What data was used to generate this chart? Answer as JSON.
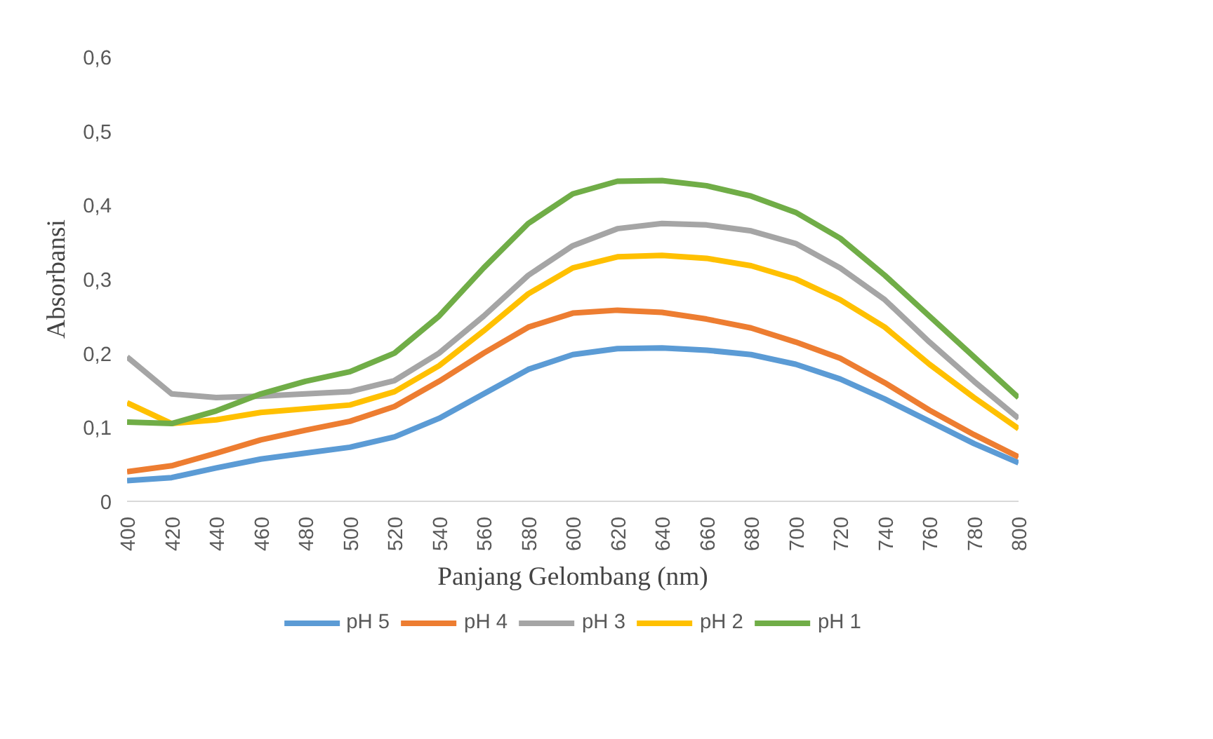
{
  "chart_data": {
    "type": "line",
    "xlabel": "Panjang Gelombang (nm)",
    "ylabel": "Absorbansi",
    "x": [
      400,
      420,
      440,
      460,
      480,
      500,
      520,
      540,
      560,
      580,
      600,
      620,
      640,
      660,
      680,
      700,
      720,
      740,
      760,
      780,
      800
    ],
    "xlim": [
      400,
      800
    ],
    "xticks": [
      400,
      420,
      440,
      460,
      480,
      500,
      520,
      540,
      560,
      580,
      600,
      620,
      640,
      660,
      680,
      700,
      720,
      740,
      760,
      780,
      800
    ],
    "ylim": [
      0,
      0.6
    ],
    "yticks": [
      0,
      {
        "value": 0.1,
        "label": "0,1"
      },
      {
        "value": 0.2,
        "label": "0,2"
      },
      {
        "value": 0.3,
        "label": "0,3"
      },
      {
        "value": 0.4,
        "label": "0,4"
      },
      {
        "value": 0.5,
        "label": "0,5"
      },
      {
        "value": 0.6,
        "label": "0,6"
      }
    ],
    "grid": false,
    "legend": "bottom",
    "marker": "none",
    "line_style": "solid",
    "series": [
      {
        "name": "pH 5",
        "color": "#5b9bd5",
        "values": [
          0.028,
          0.032,
          0.045,
          0.057,
          0.065,
          0.073,
          0.087,
          0.112,
          0.145,
          0.178,
          0.198,
          0.206,
          0.207,
          0.204,
          0.198,
          0.185,
          0.165,
          0.138,
          0.108,
          0.078,
          0.052
        ]
      },
      {
        "name": "pH 4",
        "color": "#ed7d31",
        "values": [
          0.04,
          0.048,
          0.065,
          0.083,
          0.096,
          0.108,
          0.128,
          0.162,
          0.2,
          0.235,
          0.254,
          0.258,
          0.255,
          0.246,
          0.234,
          0.215,
          0.193,
          0.16,
          0.123,
          0.09,
          0.06
        ]
      },
      {
        "name": "pH 3",
        "color": "#a5a5a5",
        "values": [
          0.195,
          0.145,
          0.14,
          0.142,
          0.145,
          0.148,
          0.163,
          0.2,
          0.25,
          0.305,
          0.345,
          0.368,
          0.375,
          0.373,
          0.365,
          0.348,
          0.315,
          0.272,
          0.215,
          0.162,
          0.112
        ]
      },
      {
        "name": "pH 2",
        "color": "#ffc000",
        "values": [
          0.133,
          0.105,
          0.11,
          0.12,
          0.125,
          0.13,
          0.148,
          0.183,
          0.23,
          0.28,
          0.315,
          0.33,
          0.332,
          0.328,
          0.318,
          0.3,
          0.272,
          0.235,
          0.185,
          0.14,
          0.098
        ]
      },
      {
        "name": "pH 1",
        "color": "#70ad47",
        "values": [
          0.107,
          0.105,
          0.122,
          0.145,
          0.162,
          0.175,
          0.2,
          0.25,
          0.315,
          0.375,
          0.415,
          0.432,
          0.433,
          0.426,
          0.412,
          0.39,
          0.355,
          0.305,
          0.25,
          0.195,
          0.14
        ]
      }
    ]
  }
}
